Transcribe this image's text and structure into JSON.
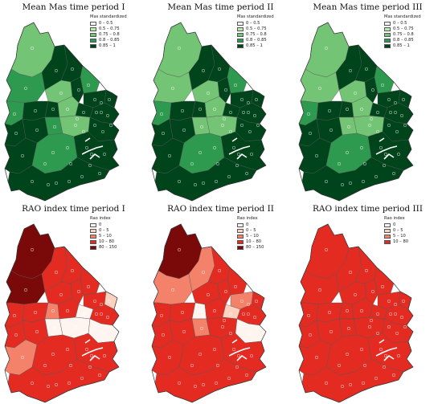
{
  "panels": [
    {
      "title": "Mean Mas time period I",
      "legend_title": "Mas standardized",
      "scheme": "green",
      "fills": [
        2,
        3,
        4,
        4,
        3,
        2,
        4,
        4,
        4,
        3,
        4,
        4,
        2,
        4,
        4,
        4,
        4,
        3,
        2,
        4,
        4,
        3,
        4,
        4
      ]
    },
    {
      "title": "Mean Mas time period II",
      "legend_title": "Mas standardized",
      "scheme": "green",
      "fills": [
        2,
        2,
        4,
        4,
        3,
        2,
        4,
        4,
        4,
        3,
        4,
        4,
        2,
        4,
        4,
        4,
        4,
        2,
        2,
        4,
        4,
        3,
        4,
        4
      ]
    },
    {
      "title": "Mean Mas time period III",
      "legend_title": "Mas standardized",
      "scheme": "green",
      "fills": [
        2,
        2,
        4,
        4,
        3,
        2,
        4,
        4,
        4,
        3,
        4,
        4,
        2,
        4,
        4,
        4,
        4,
        2,
        2,
        4,
        4,
        3,
        4,
        4
      ]
    },
    {
      "title": "RAO index time period I",
      "legend_title": "Rao index",
      "scheme": "red",
      "fills": [
        4,
        4,
        3,
        3,
        3,
        3,
        3,
        3,
        1,
        3,
        3,
        2,
        3,
        0,
        3,
        3,
        3,
        0,
        0,
        0,
        2,
        3,
        3,
        3
      ]
    },
    {
      "title": "RAO index time period II",
      "legend_title": "Rao index",
      "scheme": "red",
      "fills": [
        4,
        2,
        2,
        3,
        3,
        3,
        3,
        2,
        3,
        3,
        3,
        0,
        3,
        1,
        3,
        3,
        3,
        2,
        3,
        0,
        3,
        3,
        3,
        3
      ]
    },
    {
      "title": "RAO index time period III",
      "legend_title": "Rao index",
      "scheme": "red",
      "fills": [
        3,
        3,
        3,
        3,
        3,
        3,
        3,
        3,
        3,
        3,
        3,
        3,
        3,
        3,
        3,
        3,
        3,
        3,
        3,
        3,
        3,
        3,
        3,
        3
      ]
    }
  ],
  "legends": {
    "green": {
      "labels": [
        "0 – 0.5",
        "0.5 – 0.75",
        "0.75 – 0.8",
        "0.8 – 0.85",
        "0.85 – 1"
      ],
      "colors": [
        "#f4fbf3",
        "#bfe5b9",
        "#74c476",
        "#2e9a4f",
        "#00441b"
      ]
    },
    "red": {
      "labels": [
        "0",
        "0 – 5",
        "5 – 10",
        "10 – 80",
        "80 – 150"
      ],
      "colors": [
        "#fff5f0",
        "#fcd1c0",
        "#f4826a",
        "#e32b22",
        "#7a0a0a"
      ]
    },
    "red3": {
      "labels": [
        "0",
        "0 – 5",
        "5 – 10",
        "10 – 80"
      ],
      "colors": [
        "#fff5f0",
        "#fcd1c0",
        "#f4826a",
        "#e32b22"
      ]
    }
  }
}
